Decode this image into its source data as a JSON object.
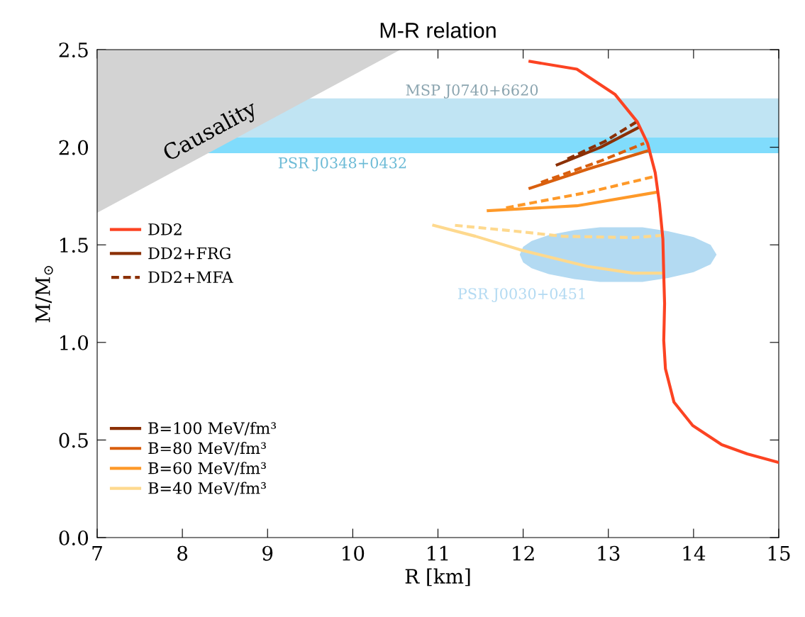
{
  "chart_data": {
    "type": "line",
    "title": "M-R relation",
    "xlabel": "R [km]",
    "ylabel": "M/M$_{⊙}$",
    "xlim": [
      7,
      15
    ],
    "xticks": [
      7,
      8,
      9,
      10,
      11,
      12,
      13,
      14,
      15
    ],
    "ylim": [
      0,
      2.5
    ],
    "yticks": [
      {
        "value": 0,
        "label": "0.0"
      },
      {
        "value": 0.5,
        "label": "0.5"
      },
      {
        "value": 1,
        "label": "1.0"
      },
      {
        "value": 1.5,
        "label": "1.5"
      },
      {
        "value": 2,
        "label": "2.0"
      },
      {
        "value": 2.5,
        "label": "2.5"
      }
    ],
    "grid": false,
    "legend": "left",
    "annotations": [
      "Causality"
    ],
    "bands": [
      {
        "axis": "y",
        "from": 2.05,
        "to": 2.25,
        "label": "MSP J0740+6620",
        "color": "#c0e4f3"
      },
      {
        "axis": "y",
        "from": 1.97,
        "to": 2.05,
        "label": "PSR J0348+0432",
        "color": "#80dcfc"
      }
    ],
    "series": [
      {
        "type": "area",
        "color": "#d3d3d3",
        "x": [
          7,
          10.56
        ],
        "values": [
          null,
          null
        ],
        "lower": [
          1.664,
          2.5
        ],
        "upper": [
          2.5,
          2.5
        ]
      },
      {
        "type": "area",
        "name": "PSR J0030+0451",
        "color": "#b3daf2",
        "x": [
          11.96,
          12.0,
          12.1,
          12.3,
          12.6,
          12.9,
          13.12,
          13.4,
          13.7,
          14.0,
          14.2,
          14.27
        ],
        "values": [
          null,
          null,
          null,
          null,
          null,
          null,
          null,
          null,
          null,
          null,
          null,
          null
        ],
        "lower": [
          1.45,
          1.41,
          1.38,
          1.35,
          1.325,
          1.31,
          1.31,
          1.31,
          1.33,
          1.36,
          1.4,
          1.45
        ],
        "upper": [
          1.45,
          1.49,
          1.52,
          1.55,
          1.575,
          1.59,
          1.59,
          1.59,
          1.57,
          1.54,
          1.5,
          1.45
        ]
      },
      {
        "name": "DD2",
        "color": "#fc4322",
        "line_style": "solid",
        "x": [
          12.08,
          12.63,
          13.08,
          13.34,
          13.46,
          13.55,
          13.6,
          13.64,
          13.65,
          13.66,
          13.655,
          13.65,
          13.67,
          13.77,
          13.99,
          14.33,
          14.63,
          15.0
        ],
        "values": [
          2.44,
          2.4,
          2.27,
          2.13,
          2.02,
          1.87,
          1.71,
          1.53,
          1.35,
          1.2,
          1.1,
          1.01,
          0.865,
          0.694,
          0.574,
          0.476,
          0.429,
          0.385
        ]
      },
      {
        "name": "DD2+FRG",
        "color": "#8b3005",
        "line_style": "solid"
      },
      {
        "name": "DD2+MFA",
        "color": "#8b3005",
        "line_style": "dashed"
      },
      {
        "name": "B=100 MeV/fm³",
        "color": "#8b3005",
        "line_style": "solid",
        "x": [
          12.4,
          12.91,
          13.35
        ],
        "values": [
          1.91,
          2.0,
          2.1
        ]
      },
      {
        "color": "#8b3005",
        "line_style": "dashed",
        "x": [
          12.52,
          12.96,
          13.33
        ],
        "values": [
          1.94,
          2.03,
          2.13
        ]
      },
      {
        "name": "B=80 MeV/fm³",
        "color": "#d95f0e",
        "line_style": "solid",
        "x": [
          12.08,
          12.77,
          13.45
        ],
        "values": [
          1.79,
          1.89,
          1.98
        ]
      },
      {
        "color": "#d95f0e",
        "line_style": "dashed",
        "x": [
          12.21,
          12.91,
          13.42
        ],
        "values": [
          1.82,
          1.93,
          2.02
        ]
      },
      {
        "name": "B=60 MeV/fm³",
        "color": "#fe9929",
        "line_style": "solid",
        "x": [
          11.59,
          12.63,
          13.57
        ],
        "values": [
          1.675,
          1.7,
          1.77
        ]
      },
      {
        "color": "#fe9929",
        "line_style": "dashed",
        "x": [
          11.8,
          12.77,
          13.54
        ],
        "values": [
          1.69,
          1.77,
          1.85
        ]
      },
      {
        "name": "B=40 MeV/fm³",
        "color": "#fed98e",
        "line_style": "solid",
        "x": [
          10.95,
          11.44,
          11.96,
          12.75,
          13.29,
          13.63
        ],
        "values": [
          1.6,
          1.544,
          1.475,
          1.39,
          1.355,
          1.355
        ]
      },
      {
        "color": "#fed98e",
        "line_style": "dashed",
        "x": [
          11.2,
          11.91,
          12.46,
          13.29,
          13.62
        ],
        "values": [
          1.6,
          1.57,
          1.544,
          1.537,
          1.548
        ]
      }
    ]
  }
}
